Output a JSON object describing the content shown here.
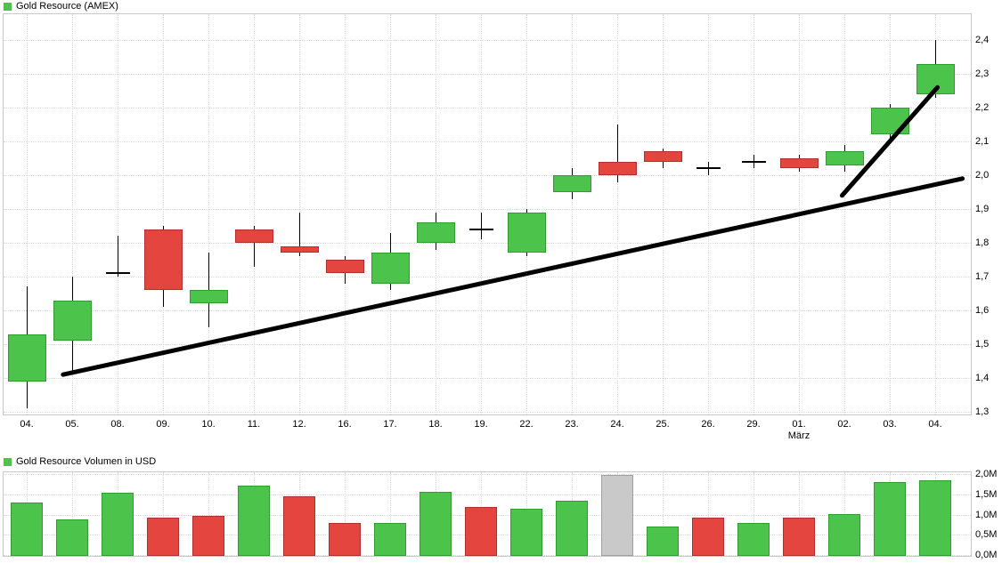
{
  "colors": {
    "up_fill": "#4cc44c",
    "up_border": "#2f9e2f",
    "down_fill": "#e4453f",
    "down_border": "#b0312b",
    "neutral_fill": "#c9c9c9",
    "neutral_border": "#9f9f9f",
    "doji": "#000000",
    "trendline": "#000000",
    "grid": "#dadada",
    "frame": "#c9c9c9",
    "legend_marker": "#4cc44c",
    "background": "#ffffff",
    "text": "#000000"
  },
  "chart_data": [
    {
      "type": "candlestick",
      "title": "Gold Resource (AMEX)",
      "x_labels": [
        "04.",
        "05.",
        "08.",
        "09.",
        "10.",
        "11.",
        "12.",
        "16.",
        "17.",
        "18.",
        "19.",
        "22.",
        "23.",
        "24.",
        "25.",
        "26.",
        "29.",
        "01.",
        "02.",
        "03.",
        "04."
      ],
      "month_label": "März",
      "month_label_under_index": 17,
      "ylim": [
        1.3,
        2.4
      ],
      "y_ticks": [
        2.4,
        2.3,
        2.2,
        2.1,
        2.0,
        1.9,
        1.8,
        1.7,
        1.6,
        1.5,
        1.4,
        1.3
      ],
      "y_tick_labels": [
        "2,4",
        "2,3",
        "2,2",
        "2,1",
        "2,0",
        "1,9",
        "1,8",
        "1,7",
        "1,6",
        "1,5",
        "1,4",
        "1,3"
      ],
      "grid": true,
      "y_axis_side": "right",
      "candles": [
        {
          "date": "04.",
          "open": 1.39,
          "high": 1.67,
          "low": 1.31,
          "close": 1.53,
          "dir": "up"
        },
        {
          "date": "05.",
          "open": 1.51,
          "high": 1.7,
          "low": 1.41,
          "close": 1.63,
          "dir": "up"
        },
        {
          "date": "08.",
          "open": 1.71,
          "high": 1.82,
          "low": 1.7,
          "close": 1.71,
          "dir": "doji"
        },
        {
          "date": "09.",
          "open": 1.84,
          "high": 1.85,
          "low": 1.61,
          "close": 1.66,
          "dir": "down"
        },
        {
          "date": "10.",
          "open": 1.62,
          "high": 1.77,
          "low": 1.55,
          "close": 1.66,
          "dir": "up"
        },
        {
          "date": "11.",
          "open": 1.84,
          "high": 1.85,
          "low": 1.73,
          "close": 1.8,
          "dir": "down"
        },
        {
          "date": "12.",
          "open": 1.79,
          "high": 1.89,
          "low": 1.76,
          "close": 1.77,
          "dir": "down"
        },
        {
          "date": "16.",
          "open": 1.75,
          "high": 1.76,
          "low": 1.68,
          "close": 1.71,
          "dir": "down"
        },
        {
          "date": "17.",
          "open": 1.68,
          "high": 1.83,
          "low": 1.66,
          "close": 1.77,
          "dir": "up"
        },
        {
          "date": "18.",
          "open": 1.8,
          "high": 1.89,
          "low": 1.78,
          "close": 1.86,
          "dir": "up"
        },
        {
          "date": "19.",
          "open": 1.84,
          "high": 1.89,
          "low": 1.81,
          "close": 1.84,
          "dir": "doji"
        },
        {
          "date": "22.",
          "open": 1.77,
          "high": 1.9,
          "low": 1.76,
          "close": 1.89,
          "dir": "up"
        },
        {
          "date": "23.",
          "open": 1.95,
          "high": 2.02,
          "low": 1.93,
          "close": 2.0,
          "dir": "up"
        },
        {
          "date": "24.",
          "open": 2.04,
          "high": 2.15,
          "low": 1.98,
          "close": 2.0,
          "dir": "down"
        },
        {
          "date": "25.",
          "open": 2.07,
          "high": 2.08,
          "low": 2.02,
          "close": 2.04,
          "dir": "down"
        },
        {
          "date": "26.",
          "open": 2.02,
          "high": 2.04,
          "low": 2.0,
          "close": 2.02,
          "dir": "doji"
        },
        {
          "date": "29.",
          "open": 2.04,
          "high": 2.06,
          "low": 2.02,
          "close": 2.04,
          "dir": "doji"
        },
        {
          "date": "01.",
          "open": 2.05,
          "high": 2.06,
          "low": 2.01,
          "close": 2.02,
          "dir": "down"
        },
        {
          "date": "02.",
          "open": 2.03,
          "high": 2.09,
          "low": 2.01,
          "close": 2.07,
          "dir": "up"
        },
        {
          "date": "03.",
          "open": 2.12,
          "high": 2.21,
          "low": 2.1,
          "close": 2.2,
          "dir": "up"
        },
        {
          "date": "04.",
          "open": 2.24,
          "high": 2.4,
          "low": 2.23,
          "close": 2.33,
          "dir": "up"
        }
      ],
      "trendlines": [
        {
          "x1_index": 0.8,
          "price1": 1.41,
          "x2_index": 20.6,
          "price2": 1.99
        },
        {
          "x1_index": 17.95,
          "price1": 1.94,
          "x2_index": 20.05,
          "price2": 2.26
        }
      ]
    },
    {
      "type": "bar",
      "title": "Gold Resource Volumen in USD",
      "categories": [
        "04.",
        "05.",
        "08.",
        "09.",
        "10.",
        "11.",
        "12.",
        "16.",
        "17.",
        "18.",
        "19.",
        "22.",
        "23.",
        "24.",
        "25.",
        "26.",
        "29.",
        "01.",
        "02.",
        "03.",
        "04."
      ],
      "values": [
        1.3,
        0.88,
        1.53,
        0.92,
        0.97,
        1.71,
        1.44,
        0.79,
        0.79,
        1.57,
        1.19,
        1.15,
        1.35,
        1.98,
        0.7,
        0.92,
        0.79,
        0.92,
        1.01,
        1.8,
        1.85
      ],
      "unit": "M USD",
      "bar_colors": [
        "up",
        "up",
        "up",
        "down",
        "down",
        "up",
        "down",
        "down",
        "up",
        "up",
        "down",
        "up",
        "up",
        "neutral",
        "up",
        "down",
        "up",
        "down",
        "up",
        "up",
        "up"
      ],
      "ylim": [
        0,
        2.0
      ],
      "y_ticks": [
        2.0,
        1.5,
        1.0,
        0.5,
        0.0
      ],
      "y_tick_labels": [
        "2,0M",
        "1,5M",
        "1,0M",
        "0,5M",
        "0,0M"
      ],
      "grid": true,
      "y_axis_side": "right"
    }
  ]
}
